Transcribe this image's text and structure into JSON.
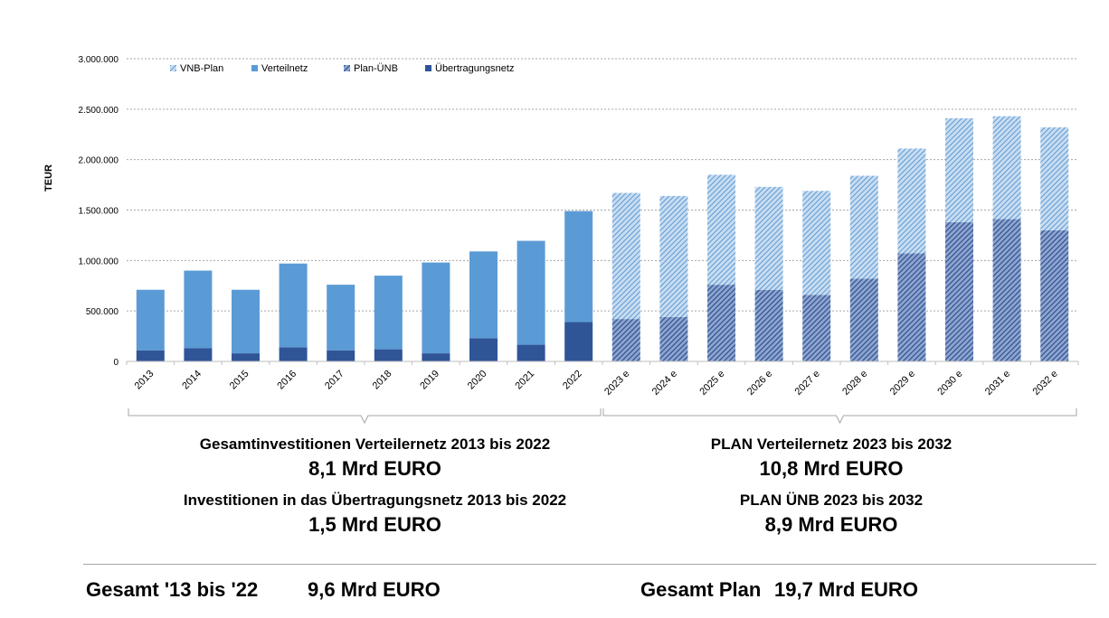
{
  "chart_data": {
    "type": "bar",
    "stacked": true,
    "ylabel": "TEUR",
    "ylim": [
      0,
      3000000
    ],
    "yticks": [
      "0",
      "500.000",
      "1.000.000",
      "1.500.000",
      "2.000.000",
      "2.500.000",
      "3.000.000"
    ],
    "grid": true,
    "legend_position": "top-left",
    "categories": [
      "2013",
      "2014",
      "2015",
      "2016",
      "2017",
      "2018",
      "2019",
      "2020",
      "2021",
      "2022",
      "2023 e",
      "2024 e",
      "2025 e",
      "2026 e",
      "2027 e",
      "2028 e",
      "2029 e",
      "2030 e",
      "2031 e",
      "2032 e"
    ],
    "series": [
      {
        "name": "VNB-Plan",
        "color": "#5b9bd5",
        "pattern": "hatched-light",
        "values": [
          0,
          0,
          0,
          0,
          0,
          0,
          0,
          0,
          0,
          0,
          1250000,
          1200000,
          1090000,
          1020000,
          1030000,
          1020000,
          1040000,
          1030000,
          1020000,
          1020000
        ]
      },
      {
        "name": "Verteilnetz",
        "color": "#5b9bd5",
        "pattern": "solid",
        "values": [
          600000,
          770000,
          630000,
          830000,
          650000,
          730000,
          900000,
          860000,
          1030000,
          1100000,
          0,
          0,
          0,
          0,
          0,
          0,
          0,
          0,
          0,
          0
        ]
      },
      {
        "name": "Plan-ÜNB",
        "color": "#2f5597",
        "pattern": "hatched-dark",
        "values": [
          0,
          0,
          0,
          0,
          0,
          0,
          0,
          0,
          0,
          0,
          420000,
          440000,
          760000,
          710000,
          660000,
          820000,
          1070000,
          1380000,
          1410000,
          1300000
        ]
      },
      {
        "name": "Übertragungsnetz",
        "color": "#2f5597",
        "pattern": "solid",
        "values": [
          110000,
          130000,
          80000,
          140000,
          110000,
          120000,
          80000,
          230000,
          165000,
          390000,
          0,
          0,
          0,
          0,
          0,
          0,
          0,
          0,
          0,
          0
        ]
      }
    ]
  },
  "summary": {
    "left": {
      "line1": "Gesamtinvestitionen Verteilernetz 2013 bis 2022",
      "value1": "8,1 Mrd EURO",
      "line2": "Investitionen in das Übertragungsnetz 2013 bis 2022",
      "value2": "1,5 Mrd EURO"
    },
    "right": {
      "line1": "PLAN Verteilernetz 2023 bis 2032",
      "value1": "10,8 Mrd EURO",
      "line2": "PLAN ÜNB 2023 bis 2032",
      "value2": "8,9 Mrd EURO"
    }
  },
  "totals": {
    "left_label": "Gesamt '13 bis '22",
    "left_value": "9,6 Mrd EURO",
    "right_label": "Gesamt Plan",
    "right_value": "19,7 Mrd EURO"
  }
}
